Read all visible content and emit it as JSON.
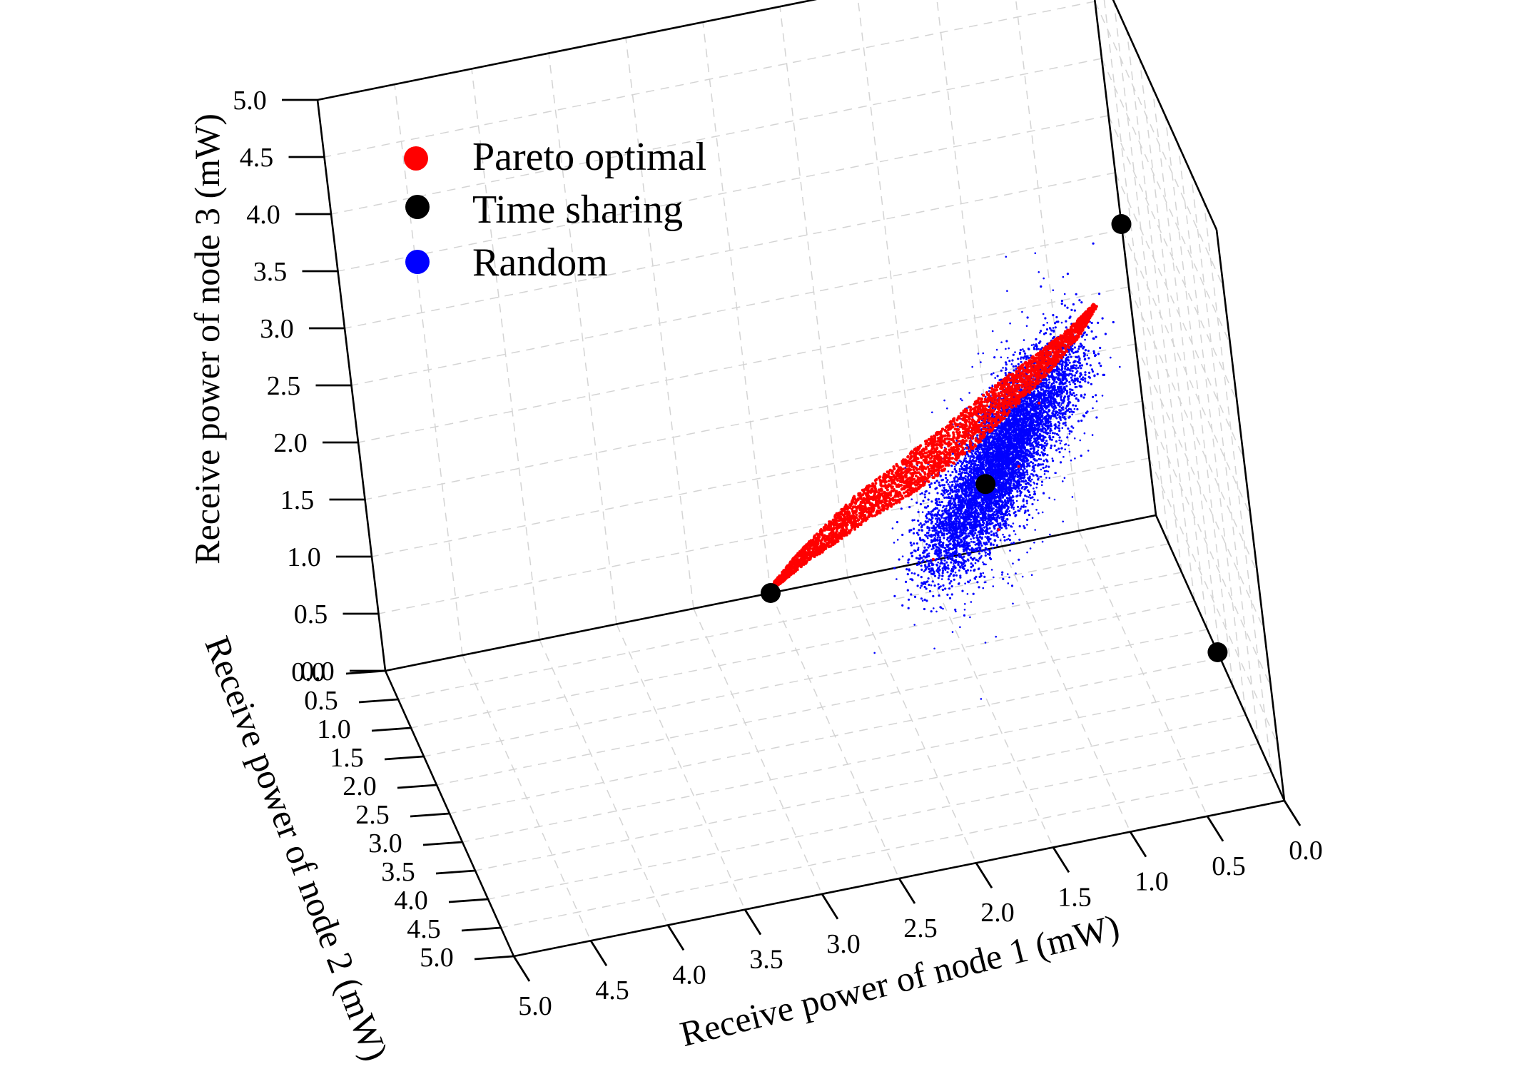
{
  "chart_data": {
    "type": "scatter",
    "title": "",
    "xlabel": "Receive power of node 1 (mW)",
    "ylabel": "Receive power of node 2 (mW)",
    "zlabel": "Receive power of node 3 (mW)",
    "xlim": [
      0,
      5
    ],
    "ylim": [
      0,
      5
    ],
    "zlim": [
      0,
      5
    ],
    "x_ticks": [
      "0.0",
      "0.5",
      "1.0",
      "1.5",
      "2.0",
      "2.5",
      "3.0",
      "3.5",
      "4.0",
      "4.5",
      "5.0"
    ],
    "y_ticks": [
      "0.0",
      "0.5",
      "1.0",
      "1.5",
      "2.0",
      "2.5",
      "3.0",
      "3.5",
      "4.0",
      "4.5",
      "5.0"
    ],
    "z_ticks": [
      "0.0",
      "0.5",
      "1.0",
      "1.5",
      "2.0",
      "2.5",
      "3.0",
      "3.5",
      "4.0",
      "4.5",
      "5.0"
    ],
    "grid": true,
    "legend_position": "top-left",
    "series": [
      {
        "name": "Pareto optimal",
        "color": "#ff0000",
        "marker": "dot",
        "points": [
          [
            2.48,
            0.0,
            0.05
          ],
          [
            2.3,
            0.2,
            0.35
          ],
          [
            2.1,
            0.35,
            0.6
          ],
          [
            1.9,
            0.5,
            0.85
          ],
          [
            1.7,
            0.65,
            1.05
          ],
          [
            1.5,
            0.75,
            1.25
          ],
          [
            1.3,
            0.85,
            1.45
          ],
          [
            1.1,
            0.9,
            1.65
          ],
          [
            0.9,
            0.95,
            1.85
          ],
          [
            0.7,
            1.0,
            2.05
          ],
          [
            0.5,
            1.02,
            2.25
          ],
          [
            0.35,
            1.03,
            2.45
          ],
          [
            1.2,
            1.6,
            1.0
          ],
          [
            1.0,
            1.4,
            1.4
          ],
          [
            0.8,
            1.2,
            1.8
          ],
          [
            1.6,
            1.3,
            0.7
          ]
        ]
      },
      {
        "name": "Time sharing",
        "color": "#000000",
        "marker": "circle",
        "points": [
          [
            2.5,
            0.0,
            0.0
          ],
          [
            0.0,
            2.4,
            0.0
          ],
          [
            0.0,
            0.0,
            2.55
          ],
          [
            1.2,
            1.2,
            1.2
          ]
        ]
      },
      {
        "name": "Random",
        "color": "#0000ff",
        "marker": "dot",
        "points": [
          [
            1.0,
            0.5,
            1.0
          ],
          [
            0.8,
            0.3,
            1.2
          ],
          [
            1.2,
            0.6,
            0.8
          ],
          [
            0.6,
            0.4,
            1.5
          ],
          [
            1.4,
            0.7,
            0.6
          ],
          [
            0.9,
            0.2,
            1.1
          ],
          [
            1.1,
            0.8,
            0.9
          ]
        ]
      }
    ]
  }
}
